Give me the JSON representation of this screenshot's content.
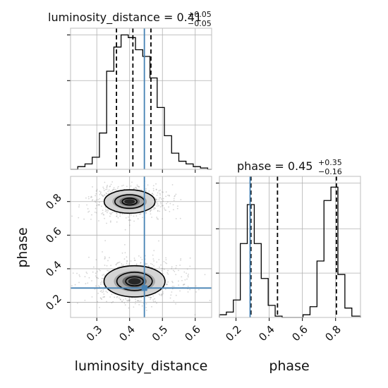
{
  "chart_data": {
    "type": "corner",
    "colors": {
      "truth": "#4682b4",
      "hist": "#000000",
      "grid": "#b0b0b0",
      "scatter": "#888888"
    },
    "panels": [
      {
        "id": "luminosity_distance-marginal",
        "type": "histogram",
        "title": {
          "prefix": "luminosity_distance = 0.41",
          "sup": "+0.05",
          "sub": "−0.05"
        },
        "xlim": [
          0.22,
          0.65
        ],
        "ylim": [
          0,
          1.0
        ],
        "bin_edges": [
          0.22,
          0.242,
          0.264,
          0.286,
          0.308,
          0.33,
          0.352,
          0.374,
          0.396,
          0.418,
          0.44,
          0.462,
          0.484,
          0.506,
          0.528,
          0.55,
          0.572,
          0.594,
          0.616,
          0.638,
          0.65
        ],
        "counts": [
          0.0,
          0.02,
          0.04,
          0.09,
          0.27,
          0.73,
          0.91,
          1.0,
          0.98,
          0.89,
          0.84,
          0.68,
          0.46,
          0.25,
          0.12,
          0.06,
          0.04,
          0.02,
          0.01,
          0.0
        ],
        "quantiles": [
          0.36,
          0.41,
          0.465
        ],
        "truth": 0.445,
        "yticks": [
          0.33,
          0.66,
          1.0
        ]
      },
      {
        "id": "phase-marginal",
        "type": "histogram",
        "title": {
          "prefix": "phase = 0.45",
          "sup": "+0.35",
          "sub": "−0.16"
        },
        "xlim": [
          0.1,
          0.95
        ],
        "ylim": [
          0,
          1.0
        ],
        "bin_edges": [
          0.1,
          0.142,
          0.184,
          0.226,
          0.268,
          0.31,
          0.352,
          0.394,
          0.436,
          0.478,
          0.52,
          0.562,
          0.604,
          0.646,
          0.688,
          0.73,
          0.772,
          0.814,
          0.856,
          0.898,
          0.95
        ],
        "counts": [
          0.02,
          0.04,
          0.13,
          0.55,
          0.84,
          0.55,
          0.29,
          0.09,
          0.01,
          0.0,
          0.0,
          0.0,
          0.02,
          0.08,
          0.42,
          0.87,
          0.97,
          0.32,
          0.07,
          0.01
        ],
        "quantiles": [
          0.29,
          0.45,
          0.805
        ],
        "truth": 0.285,
        "yticks": [
          0.33,
          0.66,
          1.0
        ],
        "xticks": [
          0.2,
          0.4,
          0.6,
          0.8
        ],
        "xlabel": "phase"
      },
      {
        "id": "joint",
        "type": "2d-density",
        "xlim": [
          0.22,
          0.65
        ],
        "ylim": [
          0.11,
          0.95
        ],
        "xticks": [
          0.3,
          0.4,
          0.5,
          0.6
        ],
        "yticks": [
          0.2,
          0.4,
          0.6,
          0.8
        ],
        "xlabel": "luminosity_distance",
        "ylabel": "phase",
        "truth": [
          0.445,
          0.285
        ],
        "modes": [
          {
            "cx": 0.4,
            "cy": 0.8,
            "sx": 0.05,
            "sy": 0.045
          },
          {
            "cx": 0.415,
            "cy": 0.325,
            "sx": 0.06,
            "sy": 0.06
          }
        ],
        "contour_levels": [
          0.45,
          0.9,
          1.55
        ]
      }
    ]
  }
}
